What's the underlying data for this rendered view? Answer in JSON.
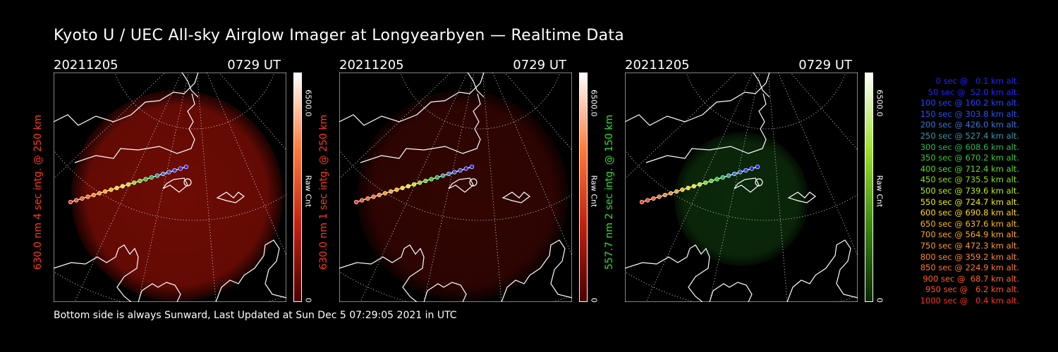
{
  "title": "Kyoto U / UEC All-sky Airglow Imager at Longyearbyen — Realtime Data",
  "footer": "Bottom side is always Sunward, Last Updated at Sun Dec  5 07:29:05 2021 in UTC",
  "panels": [
    {
      "date": "20211205",
      "time": "0729 UT",
      "ylabel": "630.0 nm 4 sec intg. @ 250 km",
      "ylabel_color": "#ff3a1a",
      "cbar_max": "6500.0",
      "cbar_label": "Raw Cnt",
      "cbar_min": "0",
      "glow": "#7a0d05",
      "glow_opacity": 0.9,
      "cbar_gradient": "#ffffff,#ff7a3a,#c02010,#4a0000"
    },
    {
      "date": "20211205",
      "time": "0729 UT",
      "ylabel": "630.0 nm 1 sec intg. @ 250 km",
      "ylabel_color": "#ff3a1a",
      "cbar_max": "6500.0",
      "cbar_label": "Raw Cnt",
      "cbar_min": "0",
      "glow": "#3a0603",
      "glow_opacity": 0.85,
      "cbar_gradient": "#ffffff,#ff7a3a,#c02010,#4a0000"
    },
    {
      "date": "20211205",
      "time": "0729 UT",
      "ylabel": "557.7 nm 2 sec intg. @ 150 km",
      "ylabel_color": "#2fe02f",
      "cbar_max": "6500.0",
      "cbar_label": "Raw Cnt",
      "cbar_min": "0",
      "glow": "#0f3a0f",
      "glow_opacity": 0.7,
      "cbar_gradient": "#ffffff,#9de02a,#3a8a10,#0a2a00"
    }
  ],
  "legend": [
    {
      "text": "0 sec @   0.1 km alt.",
      "color": "#2222ff"
    },
    {
      "text": "50 sec @  52.0 km alt.",
      "color": "#2222ff"
    },
    {
      "text": "100 sec @ 160.2 km alt.",
      "color": "#2244ff"
    },
    {
      "text": "150 sec @ 303.8 km alt.",
      "color": "#2255ee"
    },
    {
      "text": "200 sec @ 426.0 km alt.",
      "color": "#3377dd"
    },
    {
      "text": "250 sec @ 527.4 km alt.",
      "color": "#3399aa"
    },
    {
      "text": "300 sec @ 608.6 km alt.",
      "color": "#22bb55"
    },
    {
      "text": "350 sec @ 670.2 km alt.",
      "color": "#33cc33"
    },
    {
      "text": "400 sec @ 712.4 km alt.",
      "color": "#55dd22"
    },
    {
      "text": "450 sec @ 735.5 km alt.",
      "color": "#88e011"
    },
    {
      "text": "500 sec @ 739.6 km alt.",
      "color": "#bbee00"
    },
    {
      "text": "550 sec @ 724.7 km alt.",
      "color": "#eeee00"
    },
    {
      "text": "600 sec @ 690.8 km alt.",
      "color": "#ffdd00"
    },
    {
      "text": "650 sec @ 637.6 km alt.",
      "color": "#ffbb00"
    },
    {
      "text": "700 sec @ 564.9 km alt.",
      "color": "#ffaa11"
    },
    {
      "text": "750 sec @ 472.3 km alt.",
      "color": "#ff9922"
    },
    {
      "text": "800 sec @ 359.2 km alt.",
      "color": "#ff8822"
    },
    {
      "text": "850 sec @ 224.9 km alt.",
      "color": "#ff7722"
    },
    {
      "text": "900 sec @  68.7 km alt.",
      "color": "#ff6622"
    },
    {
      "text": "950 sec @   6.2 km alt.",
      "color": "#ff5522"
    },
    {
      "text": "1000 sec @   0.4 km alt.",
      "color": "#ff3322"
    }
  ]
}
